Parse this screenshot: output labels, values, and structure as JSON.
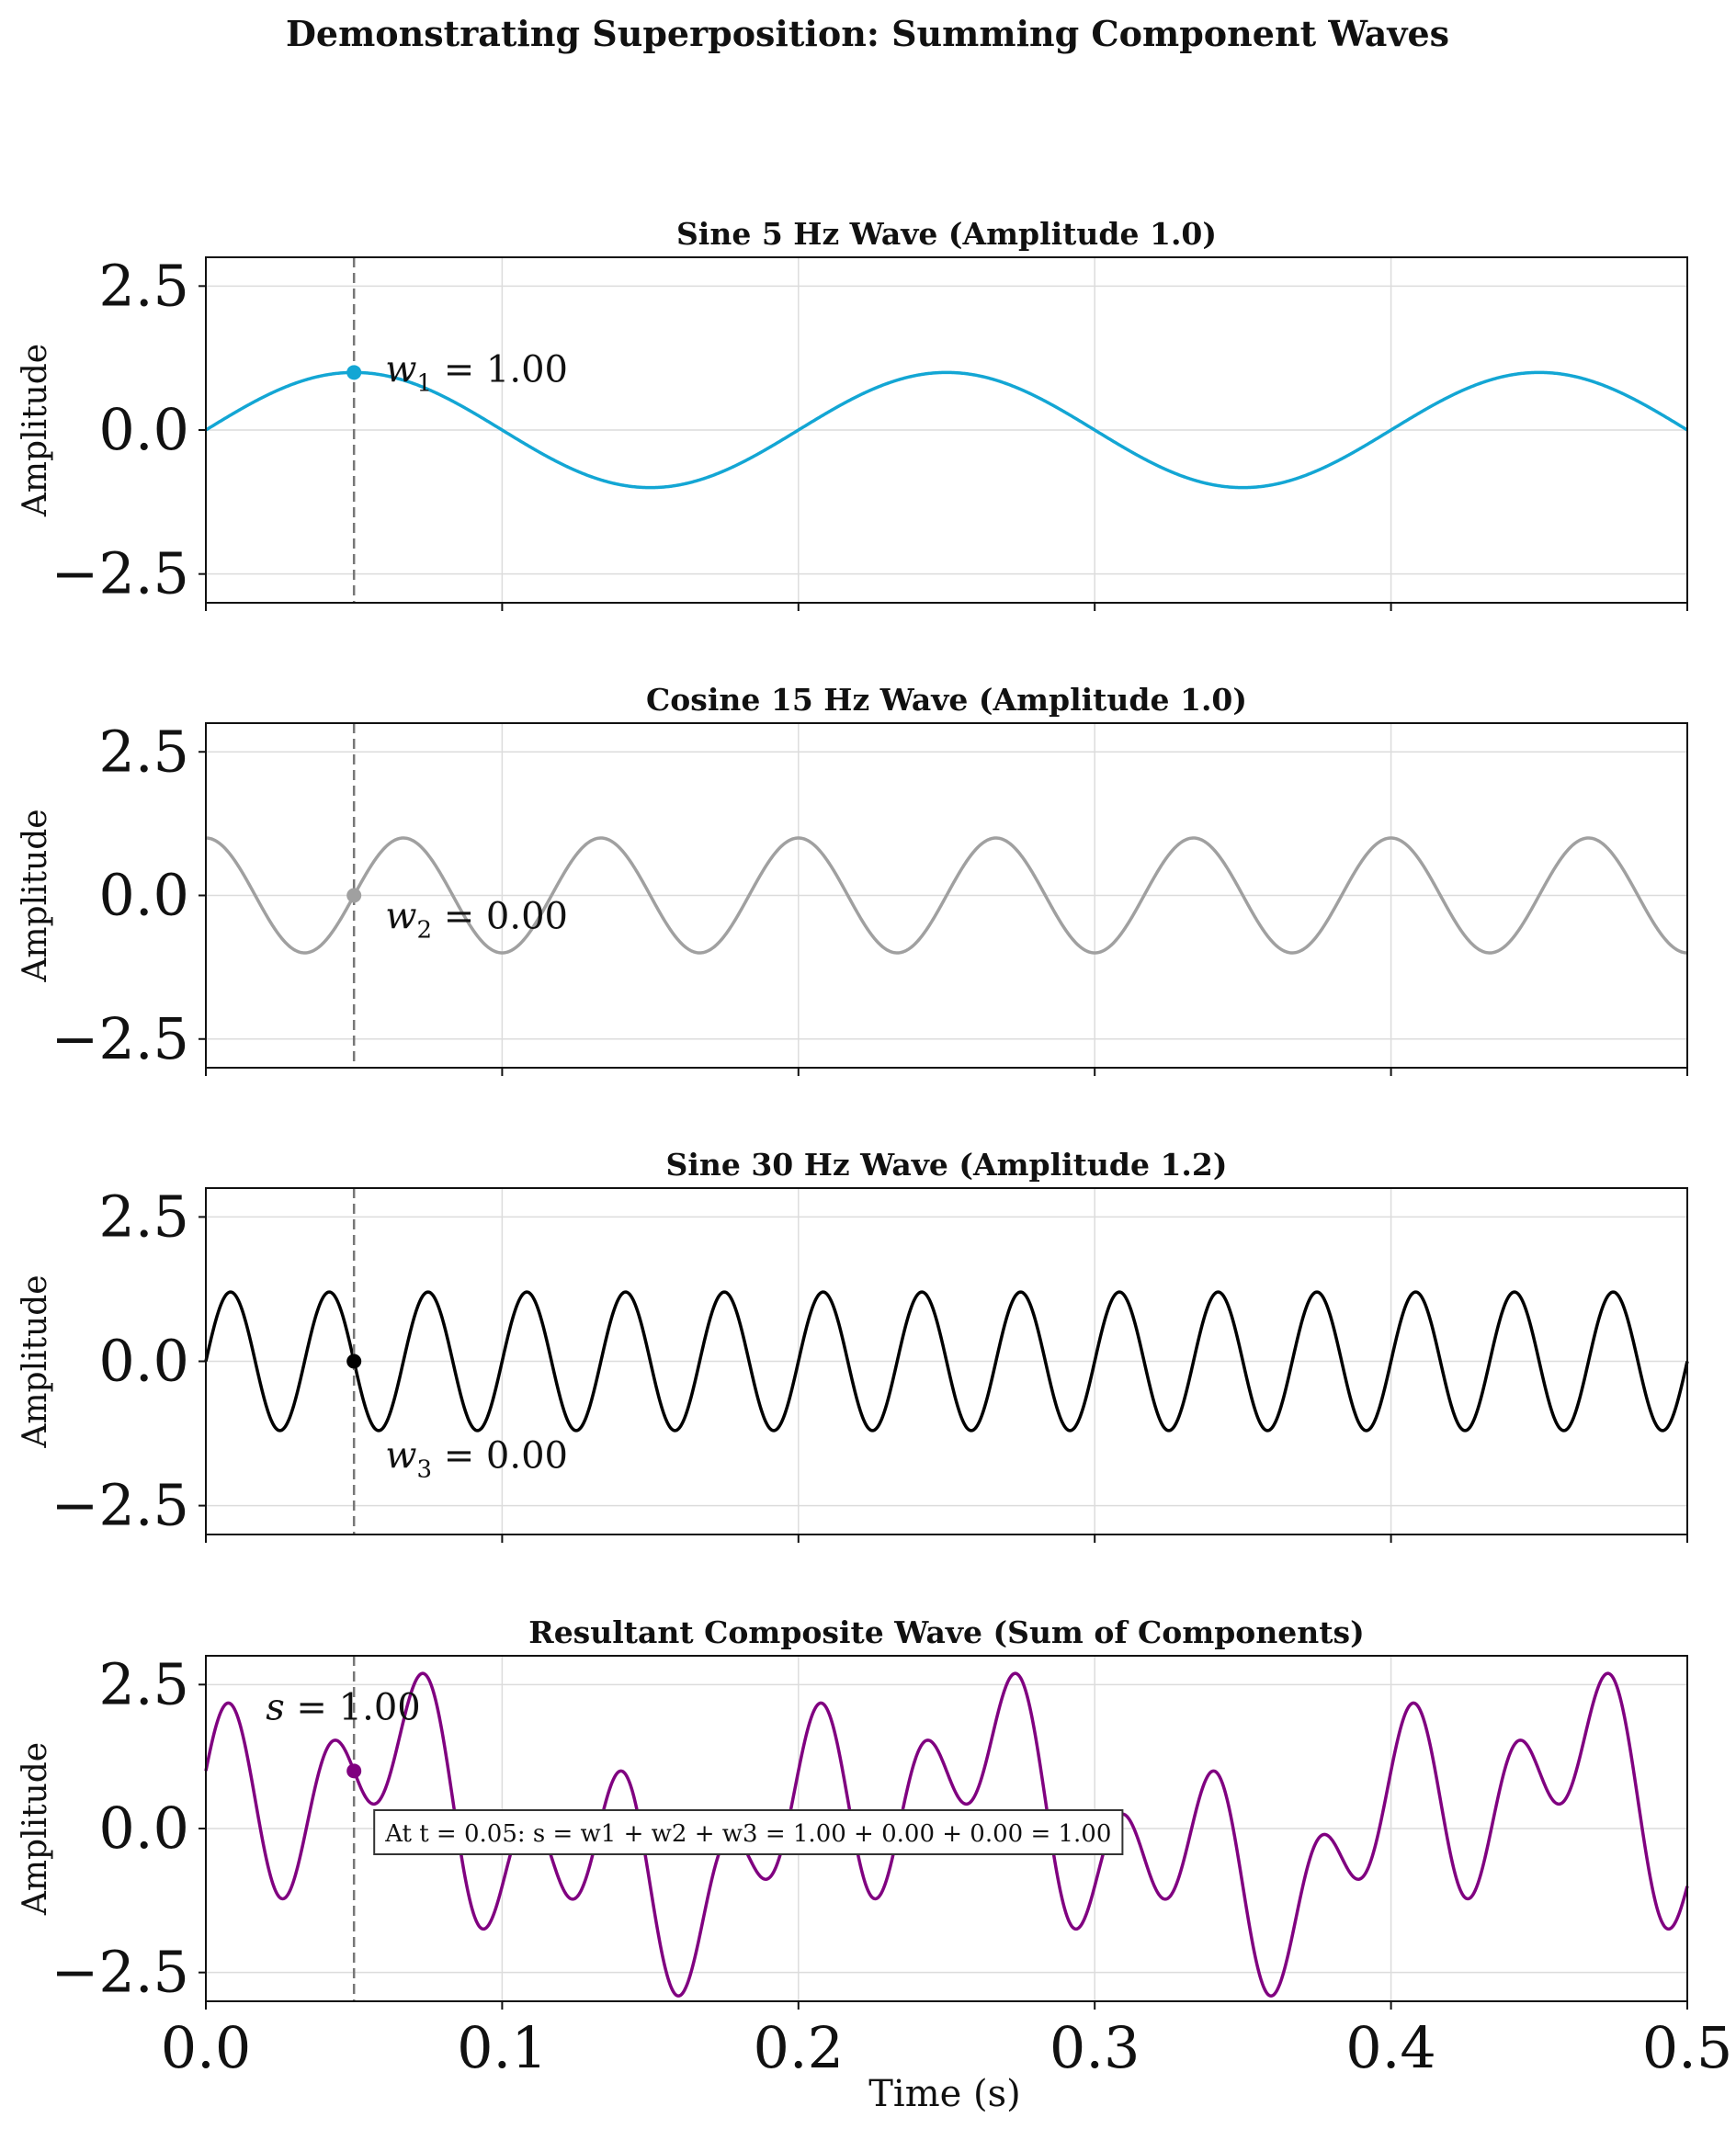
{
  "figure": {
    "suptitle": "Demonstrating Superposition: Summing Component Waves",
    "xlabel": "Time (s)",
    "ylabel": "Amplitude",
    "marker_time": 0.05
  },
  "chart_data": [
    {
      "type": "line",
      "title": "Sine 5 Hz Wave (Amplitude 1.0)",
      "ylabel": "Amplitude",
      "xlim": [
        0,
        0.5
      ],
      "ylim": [
        -3,
        3
      ],
      "yticks": [
        -2.5,
        0.0,
        2.5
      ],
      "ytick_labels": [
        "−2.5",
        "0.0",
        "2.5"
      ],
      "xticks": [
        0.0,
        0.1,
        0.2,
        0.3,
        0.4,
        0.5
      ],
      "grid": true,
      "series": [
        {
          "function": "sine",
          "frequency_hz": 5,
          "amplitude": 1.0,
          "color": "#13a6d4"
        }
      ],
      "marker": {
        "x": 0.05,
        "y": 1.0,
        "symbol": "w",
        "sub": "1",
        "value": "1.00"
      }
    },
    {
      "type": "line",
      "title": "Cosine 15 Hz Wave (Amplitude 1.0)",
      "ylabel": "Amplitude",
      "xlim": [
        0,
        0.5
      ],
      "ylim": [
        -3,
        3
      ],
      "yticks": [
        -2.5,
        0.0,
        2.5
      ],
      "ytick_labels": [
        "−2.5",
        "0.0",
        "2.5"
      ],
      "xticks": [
        0.0,
        0.1,
        0.2,
        0.3,
        0.4,
        0.5
      ],
      "grid": true,
      "series": [
        {
          "function": "cosine",
          "frequency_hz": 15,
          "amplitude": 1.0,
          "color": "#a0a0a0"
        }
      ],
      "marker": {
        "x": 0.05,
        "y": 0.0,
        "symbol": "w",
        "sub": "2",
        "value": "0.00"
      }
    },
    {
      "type": "line",
      "title": "Sine 30 Hz Wave (Amplitude 1.2)",
      "ylabel": "Amplitude",
      "xlim": [
        0,
        0.5
      ],
      "ylim": [
        -3,
        3
      ],
      "yticks": [
        -2.5,
        0.0,
        2.5
      ],
      "ytick_labels": [
        "−2.5",
        "0.0",
        "2.5"
      ],
      "xticks": [
        0.0,
        0.1,
        0.2,
        0.3,
        0.4,
        0.5
      ],
      "grid": true,
      "series": [
        {
          "function": "sine",
          "frequency_hz": 30,
          "amplitude": 1.2,
          "color": "#000000"
        }
      ],
      "marker": {
        "x": 0.05,
        "y": 0.0,
        "symbol": "w",
        "sub": "3",
        "value": "0.00"
      }
    },
    {
      "type": "line",
      "title": "Resultant Composite Wave (Sum of Components)",
      "ylabel": "Amplitude",
      "xlabel": "Time (s)",
      "xlim": [
        0,
        0.5
      ],
      "ylim": [
        -3,
        3
      ],
      "yticks": [
        -2.5,
        0.0,
        2.5
      ],
      "ytick_labels": [
        "−2.5",
        "0.0",
        "2.5"
      ],
      "xticks": [
        0.0,
        0.1,
        0.2,
        0.3,
        0.4,
        0.5
      ],
      "xtick_labels": [
        "0.0",
        "0.1",
        "0.2",
        "0.3",
        "0.4",
        "0.5"
      ],
      "grid": true,
      "series": [
        {
          "function": "sum",
          "color": "#800080"
        }
      ],
      "marker": {
        "x": 0.05,
        "y": 1.0,
        "symbol": "s",
        "sub": "",
        "value": "1.00"
      },
      "annotation_box": "At t = 0.05: s = w1 + w2 + w3 = 1.00 + 0.00 + 0.00 = 1.00"
    }
  ]
}
